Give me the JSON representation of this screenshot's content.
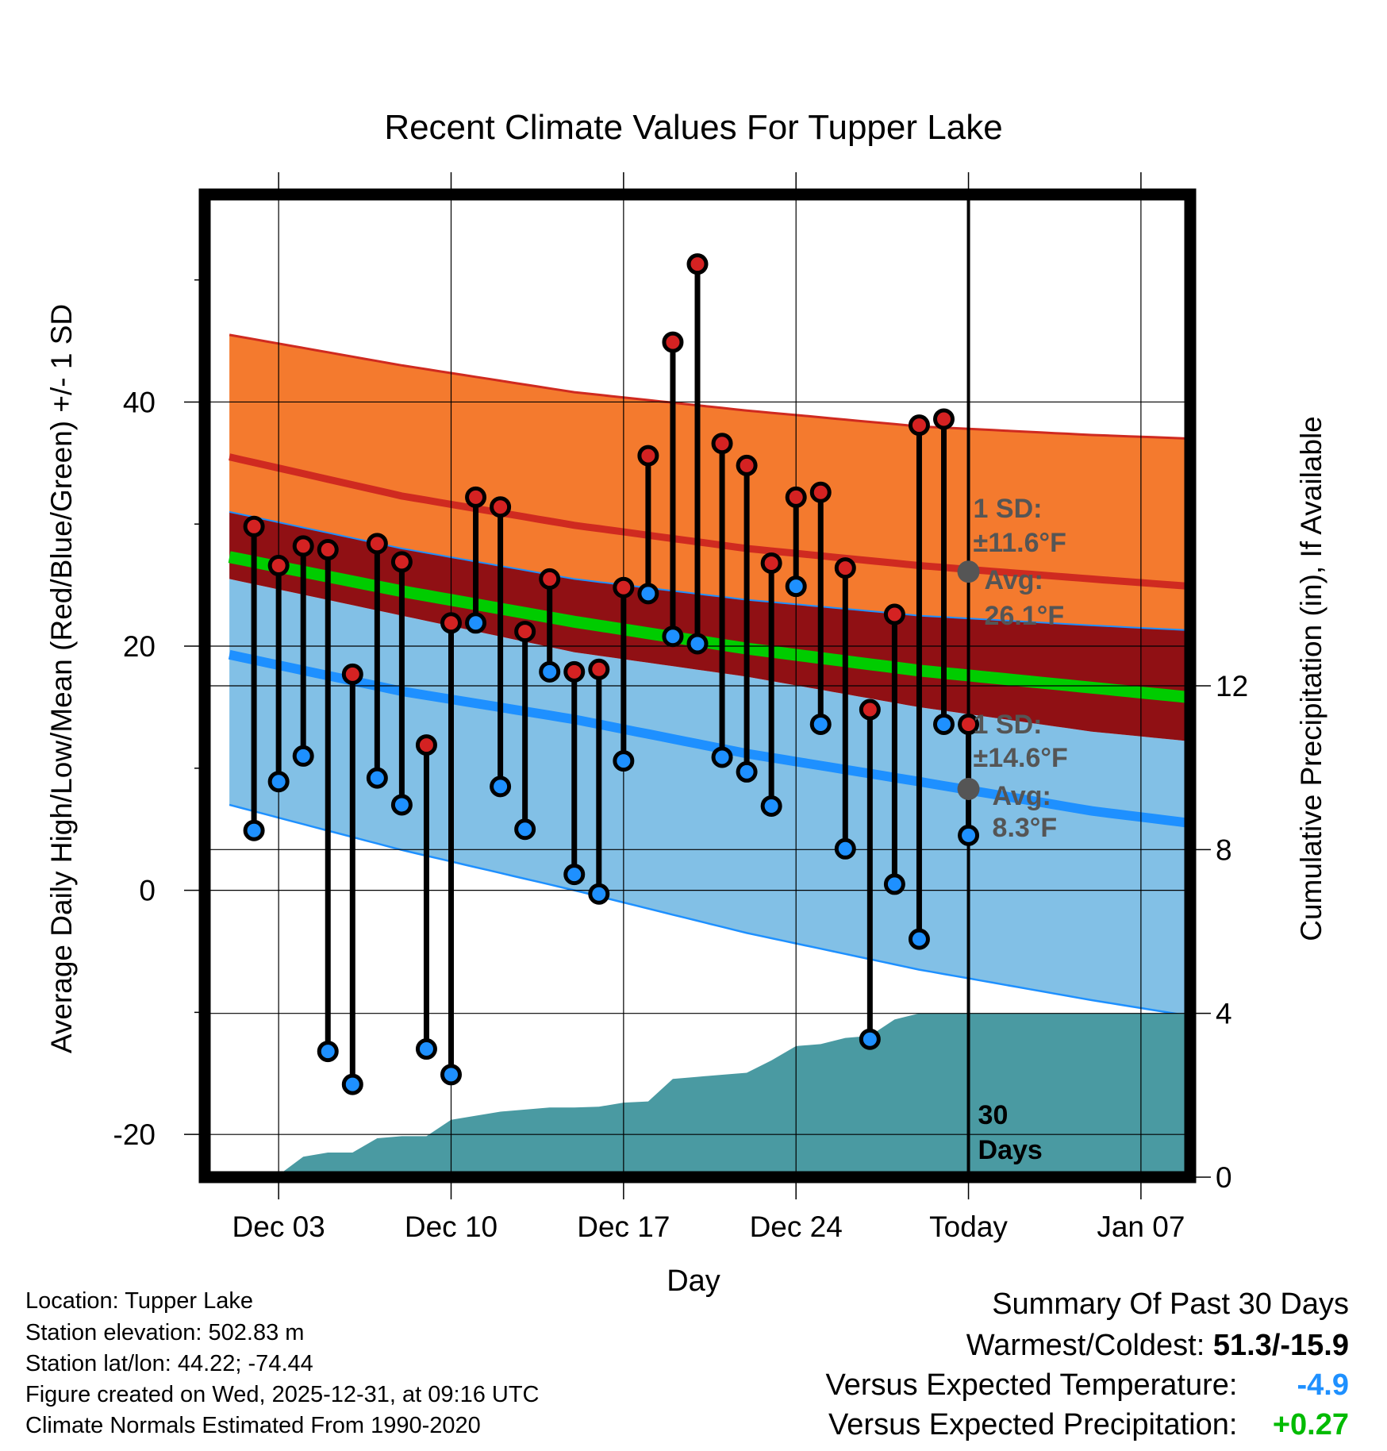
{
  "chart_data": {
    "type": "line",
    "title": "Recent Climate Values For Tupper Lake",
    "xlabel": "Day",
    "ylabel": "Average Daily High/Low/Mean (Red/Blue/Green) +/- 1 SD",
    "y2label": "Cumulative Precipitation (in), If Available",
    "ylim": [
      -23.5,
      57
    ],
    "y2lim": [
      0,
      24
    ],
    "xlim": [
      -1,
      39
    ],
    "x_ticks": [
      {
        "day": 2,
        "label": "Dec 03"
      },
      {
        "day": 9,
        "label": "Dec 10"
      },
      {
        "day": 16,
        "label": "Dec 17"
      },
      {
        "day": 23,
        "label": "Dec 24"
      },
      {
        "day": 30,
        "label": "Today"
      },
      {
        "day": 37,
        "label": "Jan 07"
      }
    ],
    "y_ticks": [
      {
        "value": -20,
        "label": "-20"
      },
      {
        "value": 0,
        "label": "0"
      },
      {
        "value": 20,
        "label": "20"
      },
      {
        "value": 40,
        "label": "40"
      }
    ],
    "y_minor_ticks": [
      -10,
      10,
      30,
      50
    ],
    "y2_ticks": [
      {
        "value": 0,
        "label": "0"
      },
      {
        "value": 4,
        "label": "4"
      },
      {
        "value": 8,
        "label": "8"
      },
      {
        "value": 12,
        "label": "12"
      }
    ],
    "today_day": 30,
    "series": [
      {
        "name": "Daily High",
        "color": "#d42222",
        "values": [
          29.8,
          26.6,
          28.2,
          27.9,
          17.7,
          28.4,
          26.9,
          11.9,
          21.9,
          32.2,
          31.4,
          21.2,
          25.5,
          17.9,
          18.1,
          24.8,
          35.6,
          44.9,
          51.3,
          36.6,
          34.8,
          26.8,
          32.2,
          32.6,
          26.4,
          14.8,
          22.6,
          38.1,
          38.6,
          13.6
        ]
      },
      {
        "name": "Daily Low",
        "color": "#1e90ff",
        "values": [
          4.9,
          8.9,
          11.0,
          -13.2,
          -15.9,
          9.2,
          7.0,
          -13.0,
          -15.1,
          21.9,
          8.5,
          5.0,
          17.9,
          1.3,
          -0.3,
          10.6,
          24.3,
          20.8,
          20.2,
          10.9,
          9.7,
          6.9,
          24.9,
          13.6,
          3.4,
          -12.2,
          0.5,
          -4.0,
          13.6,
          4.5
        ]
      }
    ],
    "normals": {
      "days": [
        0,
        7,
        14,
        21,
        28,
        35,
        39
      ],
      "high_avg": [
        35.5,
        32.3,
        29.9,
        28.0,
        26.6,
        25.5,
        24.9
      ],
      "high_upper": [
        45.5,
        43.0,
        40.8,
        39.3,
        38.0,
        37.3,
        37.0
      ],
      "high_lower": [
        31.0,
        28.0,
        25.5,
        23.8,
        22.5,
        21.7,
        21.3
      ],
      "mean": [
        27.3,
        24.5,
        22.0,
        19.8,
        18.0,
        16.6,
        15.8
      ],
      "low_avg": [
        19.3,
        16.3,
        14.0,
        11.2,
        8.9,
        6.5,
        5.5
      ],
      "low_upper": [
        25.5,
        22.5,
        19.5,
        17.5,
        15.0,
        13.0,
        12.2
      ],
      "low_lower": [
        7.0,
        3.3,
        0.0,
        -3.5,
        -6.5,
        -9.0,
        -10.3
      ]
    },
    "precip_cumulative": {
      "days": [
        1,
        2,
        3,
        4,
        5,
        6,
        7,
        8,
        9,
        10,
        11,
        12,
        13,
        14,
        15,
        16,
        17,
        18,
        19,
        20,
        21,
        22,
        23,
        24,
        25,
        26,
        27,
        28,
        29,
        30,
        39
      ],
      "values": [
        0.02,
        0.05,
        0.5,
        0.6,
        0.6,
        0.95,
        1.0,
        1.0,
        1.4,
        1.5,
        1.6,
        1.65,
        1.7,
        1.7,
        1.72,
        1.82,
        1.85,
        2.4,
        2.45,
        2.5,
        2.55,
        2.85,
        3.2,
        3.25,
        3.4,
        3.45,
        3.85,
        4.0,
        4.0,
        4.0,
        4.0
      ]
    },
    "annotations": {
      "high_sd_label": "1 SD:",
      "high_sd_value": "±11.6°F",
      "high_avg_label": "Avg:",
      "high_avg_value": "26.1°F",
      "high_avg": 26.1,
      "low_sd_label": "1 SD:",
      "low_sd_value": "±14.6°F",
      "low_avg_label": "Avg:",
      "low_avg_value": "8.3°F",
      "low_avg": 8.3,
      "days_label_1": "30",
      "days_label_2": "Days"
    }
  },
  "colors": {
    "orange": "#f47a2e",
    "orange_edge": "#cf2a20",
    "dark_red": "#901014",
    "green": "#00cc00",
    "light_blue": "#82c0e6",
    "blue_line": "#1e90ff",
    "precip": "#4a9aa2",
    "high_dot": "#d42222",
    "low_dot": "#1e90ff",
    "annot": "#555555"
  },
  "info": {
    "location": "Location: Tupper Lake",
    "elevation": "Station elevation: 502.83 m",
    "latlon": "Station lat/lon: 44.22; -74.44",
    "created": "Figure created on Wed, 2025-12-31, at 09:16 UTC",
    "normals": "Climate Normals Estimated From 1990-2020"
  },
  "summary": {
    "title": "Summary Of Past 30 Days",
    "warm_label": "Warmest/Coldest:",
    "warm_value": "51.3/-15.9",
    "temp_label": "Versus Expected Temperature:",
    "temp_value": "-4.9",
    "temp_color": "#1e90ff",
    "precip_label": "Versus Expected Precipitation:",
    "precip_value": "+0.27",
    "precip_color": "#00bb00"
  }
}
